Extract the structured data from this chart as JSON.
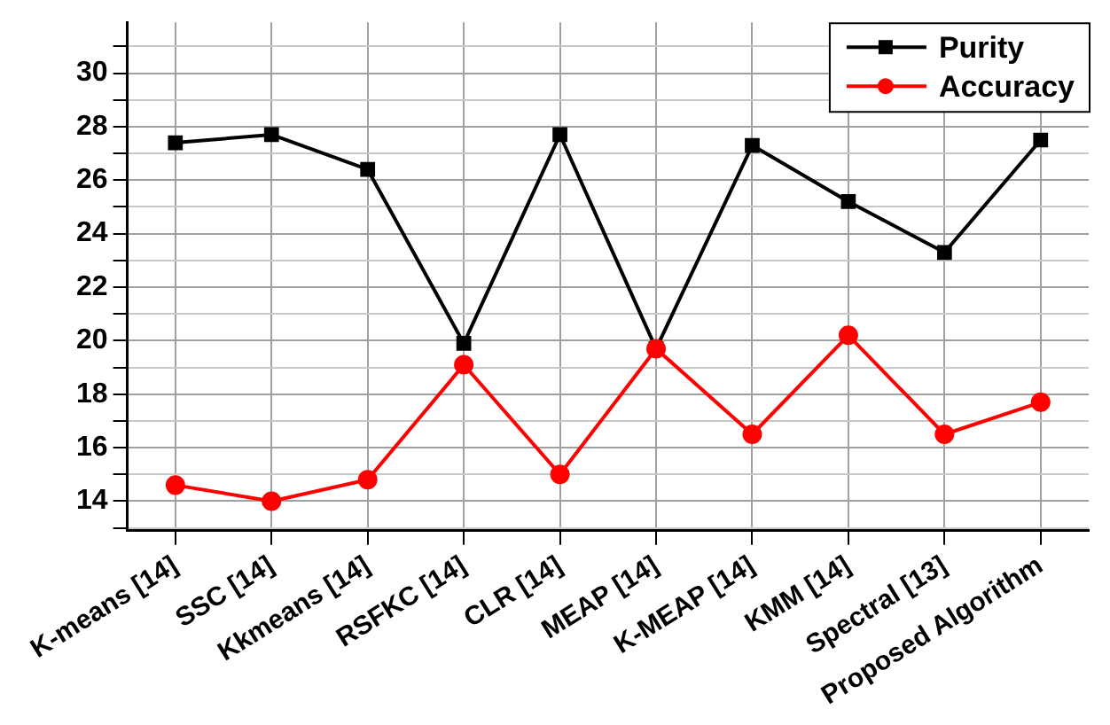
{
  "chart_data": {
    "type": "line",
    "categories": [
      "K-means [14]",
      "SSC [14]",
      "Kkmeans [14]",
      "RSFKC [14]",
      "CLR [14]",
      "MEAP [14]",
      "K-MEAP [14]",
      "KMM [14]",
      "Spectral [13]",
      "Proposed Algorithm"
    ],
    "series": [
      {
        "name": "Purity",
        "color": "#000000",
        "marker": "square",
        "values": [
          27.4,
          27.7,
          26.4,
          19.9,
          27.7,
          19.7,
          27.3,
          25.2,
          23.3,
          27.5
        ]
      },
      {
        "name": "Accuracy",
        "color": "#ff0000",
        "marker": "circle",
        "values": [
          14.6,
          14.0,
          14.8,
          19.1,
          15.0,
          19.7,
          16.5,
          20.2,
          16.5,
          17.7
        ]
      }
    ],
    "ylim": [
      12.9,
      31.9
    ],
    "yticks": [
      {
        "value": 13,
        "label": null
      },
      14,
      {
        "value": 15,
        "label": null
      },
      16,
      {
        "value": 17,
        "label": null
      },
      18,
      {
        "value": 19,
        "label": null
      },
      20,
      {
        "value": 21,
        "label": null
      },
      22,
      {
        "value": 23,
        "label": null
      },
      24,
      {
        "value": 25,
        "label": null
      },
      26,
      {
        "value": 27,
        "label": null
      },
      28,
      {
        "value": 29,
        "label": null
      },
      30,
      {
        "value": 31,
        "label": null
      }
    ],
    "grid": true,
    "legend": "top right",
    "line_style": "solid"
  }
}
